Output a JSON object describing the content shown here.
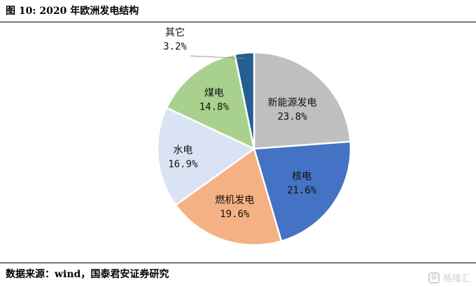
{
  "header": {
    "title": "图 10: 2020 年欧洲发电结构"
  },
  "footer": {
    "source": "数据来源：wind，国泰君安证券研究"
  },
  "watermark": {
    "text": "格隆汇",
    "logo_glyph": "G"
  },
  "chart_data": {
    "type": "pie",
    "title": "图 10: 2020 年欧洲发电结构",
    "slices": [
      {
        "label": "新能源发电",
        "value": 23.8,
        "value_label": "23.8%",
        "color": "#bfbfbf"
      },
      {
        "label": "核电",
        "value": 21.6,
        "value_label": "21.6%",
        "color": "#4472c4"
      },
      {
        "label": "燃机发电",
        "value": 19.6,
        "value_label": "19.6%",
        "color": "#f4b183"
      },
      {
        "label": "水电",
        "value": 16.9,
        "value_label": "16.9%",
        "color": "#dae3f3"
      },
      {
        "label": "煤电",
        "value": 14.8,
        "value_label": "14.8%",
        "color": "#a9d18e"
      },
      {
        "label": "其它",
        "value": 3.2,
        "value_label": "3.2%",
        "color": "#255e91"
      }
    ],
    "start": "12 o'clock",
    "direction": "clockwise",
    "legend": "none",
    "labels": "inside, category + percent"
  }
}
